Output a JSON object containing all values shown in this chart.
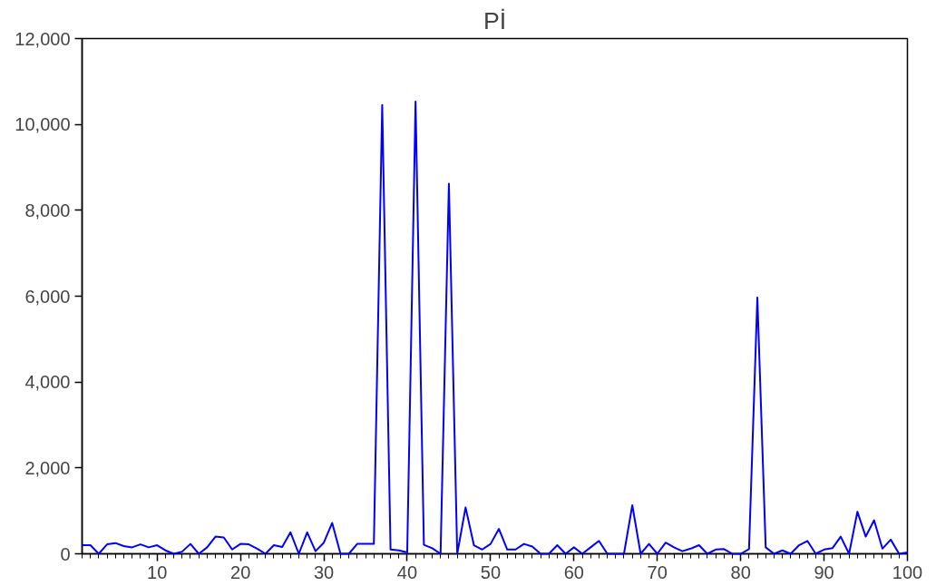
{
  "chart_data": {
    "type": "line",
    "title": "Pİ",
    "x": [
      1,
      2,
      3,
      4,
      5,
      6,
      7,
      8,
      9,
      10,
      11,
      12,
      13,
      14,
      15,
      16,
      17,
      18,
      19,
      20,
      21,
      22,
      23,
      24,
      25,
      26,
      27,
      28,
      29,
      30,
      31,
      32,
      33,
      34,
      35,
      36,
      37,
      38,
      39,
      40,
      41,
      42,
      43,
      44,
      45,
      46,
      47,
      48,
      49,
      50,
      51,
      52,
      53,
      54,
      55,
      56,
      57,
      58,
      59,
      60,
      61,
      62,
      63,
      64,
      65,
      66,
      67,
      68,
      69,
      70,
      71,
      72,
      73,
      74,
      75,
      76,
      77,
      78,
      79,
      80,
      81,
      82,
      83,
      84,
      85,
      86,
      87,
      88,
      89,
      90,
      91,
      92,
      93,
      94,
      95,
      96,
      97,
      98,
      99,
      100
    ],
    "series": [
      {
        "color": "#0000ff",
        "values": [
          200,
          200,
          0,
          220,
          250,
          180,
          150,
          220,
          150,
          200,
          80,
          0,
          50,
          230,
          0,
          150,
          400,
          380,
          100,
          230,
          220,
          120,
          0,
          200,
          160,
          500,
          0,
          500,
          60,
          260,
          720,
          0,
          0,
          230,
          230,
          230,
          10450,
          100,
          80,
          30,
          10530,
          210,
          130,
          0,
          8620,
          0,
          1080,
          200,
          100,
          230,
          580,
          100,
          100,
          230,
          170,
          0,
          0,
          200,
          0,
          150,
          0,
          150,
          300,
          0,
          0,
          0,
          1130,
          0,
          230,
          0,
          260,
          150,
          60,
          120,
          200,
          0,
          100,
          110,
          0,
          0,
          110,
          5970,
          150,
          0,
          80,
          0,
          200,
          300,
          0,
          100,
          130,
          400,
          0,
          980,
          400,
          780,
          120,
          330,
          0,
          30
        ]
      }
    ],
    "xlim": [
      1,
      100
    ],
    "xticks": [
      10,
      20,
      30,
      40,
      50,
      60,
      70,
      80,
      90,
      100
    ],
    "ylim": [
      0,
      12000
    ],
    "yticks": [
      {
        "value": 0,
        "label": "0"
      },
      {
        "value": 2000,
        "label": "2,000"
      },
      {
        "value": 4000,
        "label": "4,000"
      },
      {
        "value": 6000,
        "label": "6,000"
      },
      {
        "value": 8000,
        "label": "8,000"
      },
      {
        "value": 10000,
        "label": "10,000"
      },
      {
        "value": 12000,
        "label": "12,000"
      }
    ],
    "grid": false,
    "marker": "none",
    "line_style": "solid"
  }
}
